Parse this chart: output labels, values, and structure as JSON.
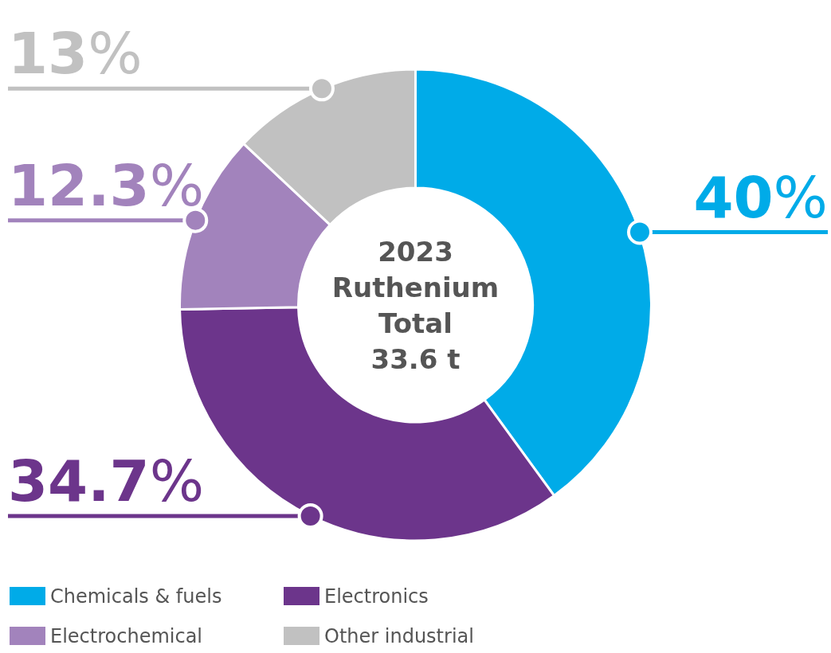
{
  "chart_data": {
    "type": "donut",
    "title": "2023\nRuthenium\nTotal\n33.6 t",
    "categories": [
      "Chemicals & fuels",
      "Electronics",
      "Electrochemical",
      "Other industrial"
    ],
    "values": [
      40,
      34.7,
      12.3,
      13
    ],
    "colors": [
      "#00abe8",
      "#6c358b",
      "#a283bc",
      "#c1c1c1"
    ],
    "value_labels": [
      "40%",
      "34.7%",
      "12.3%",
      "13%"
    ],
    "legend": "bottom"
  }
}
